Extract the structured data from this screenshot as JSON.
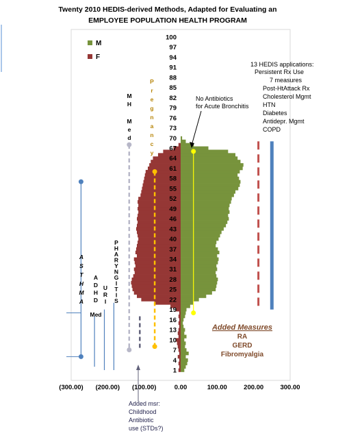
{
  "chart_data": {
    "type": "bar",
    "orientation": "horizontal-population-pyramid",
    "title_line1": "Twenty 2010 HEDIS-derived Methods, Adapted for Evaluating an",
    "title_line2": "EMPLOYEE POPULATION HEALTH PROGRAM",
    "x_ticks": [
      "(300.00)",
      "(200.00)",
      "(100.00)",
      "0.00",
      "100.00",
      "200.00",
      "300.00"
    ],
    "xlim": [
      -300,
      300
    ],
    "ylim": [
      1,
      100
    ],
    "age_labels": [
      "100",
      "97",
      "94",
      "91",
      "88",
      "85",
      "82",
      "79",
      "76",
      "73",
      "70",
      "67",
      "64",
      "61",
      "58",
      "55",
      "52",
      "49",
      "46",
      "43",
      "40",
      "37",
      "34",
      "31",
      "28",
      "25",
      "22",
      "19",
      "16",
      "13",
      "10",
      "7",
      "4",
      "1"
    ],
    "legend": [
      {
        "key": "M",
        "label": "M",
        "color": "#77933c"
      },
      {
        "key": "F",
        "label": "F",
        "color": "#953735"
      }
    ],
    "series": [
      {
        "name": "M",
        "color": "#77933c",
        "values": [
          [
            1,
            10
          ],
          [
            2,
            14
          ],
          [
            3,
            18
          ],
          [
            4,
            20
          ],
          [
            5,
            14
          ],
          [
            6,
            22
          ],
          [
            7,
            16
          ],
          [
            8,
            12
          ],
          [
            9,
            14
          ],
          [
            10,
            10
          ],
          [
            11,
            16
          ],
          [
            12,
            10
          ],
          [
            13,
            12
          ],
          [
            14,
            8
          ],
          [
            15,
            6
          ],
          [
            16,
            8
          ],
          [
            17,
            12
          ],
          [
            18,
            14
          ],
          [
            19,
            16
          ],
          [
            20,
            26
          ],
          [
            21,
            34
          ],
          [
            22,
            50
          ],
          [
            23,
            70
          ],
          [
            24,
            86
          ],
          [
            25,
            96
          ],
          [
            26,
            98
          ],
          [
            27,
            100
          ],
          [
            28,
            102
          ],
          [
            29,
            98
          ],
          [
            30,
            96
          ],
          [
            31,
            100
          ],
          [
            32,
            98
          ],
          [
            33,
            102
          ],
          [
            34,
            104
          ],
          [
            35,
            100
          ],
          [
            36,
            106
          ],
          [
            37,
            102
          ],
          [
            38,
            96
          ],
          [
            39,
            98
          ],
          [
            40,
            104
          ],
          [
            41,
            108
          ],
          [
            42,
            112
          ],
          [
            43,
            118
          ],
          [
            44,
            124
          ],
          [
            45,
            128
          ],
          [
            46,
            132
          ],
          [
            47,
            130
          ],
          [
            48,
            134
          ],
          [
            49,
            132
          ],
          [
            50,
            134
          ],
          [
            51,
            138
          ],
          [
            52,
            140
          ],
          [
            53,
            146
          ],
          [
            54,
            150
          ],
          [
            55,
            158
          ],
          [
            56,
            162
          ],
          [
            57,
            164
          ],
          [
            58,
            160
          ],
          [
            59,
            156
          ],
          [
            60,
            162
          ],
          [
            61,
            170
          ],
          [
            62,
            172
          ],
          [
            63,
            164
          ],
          [
            64,
            156
          ],
          [
            65,
            150
          ],
          [
            66,
            130
          ],
          [
            67,
            76
          ],
          [
            68,
            36
          ],
          [
            69,
            14
          ],
          [
            70,
            4
          ]
        ]
      },
      {
        "name": "F",
        "color": "#953735",
        "values": [
          [
            1,
            6
          ],
          [
            2,
            4
          ],
          [
            3,
            6
          ],
          [
            4,
            4
          ],
          [
            5,
            8
          ],
          [
            6,
            4
          ],
          [
            7,
            6
          ],
          [
            8,
            8
          ],
          [
            9,
            10
          ],
          [
            10,
            14
          ],
          [
            11,
            6
          ],
          [
            12,
            8
          ],
          [
            13,
            6
          ],
          [
            14,
            4
          ],
          [
            15,
            6
          ],
          [
            16,
            4
          ],
          [
            17,
            6
          ],
          [
            18,
            4
          ],
          [
            19,
            14
          ],
          [
            20,
            28
          ],
          [
            21,
            72
          ],
          [
            22,
            108
          ],
          [
            23,
            120
          ],
          [
            24,
            128
          ],
          [
            25,
            132
          ],
          [
            26,
            134
          ],
          [
            27,
            136
          ],
          [
            28,
            134
          ],
          [
            29,
            130
          ],
          [
            30,
            126
          ],
          [
            31,
            128
          ],
          [
            32,
            124
          ],
          [
            33,
            126
          ],
          [
            34,
            128
          ],
          [
            35,
            120
          ],
          [
            36,
            124
          ],
          [
            37,
            122
          ],
          [
            38,
            120
          ],
          [
            39,
            118
          ],
          [
            40,
            116
          ],
          [
            41,
            118
          ],
          [
            42,
            120
          ],
          [
            43,
            122
          ],
          [
            44,
            120
          ],
          [
            45,
            118
          ],
          [
            46,
            120
          ],
          [
            47,
            118
          ],
          [
            48,
            116
          ],
          [
            49,
            118
          ],
          [
            50,
            116
          ],
          [
            51,
            118
          ],
          [
            52,
            116
          ],
          [
            53,
            110
          ],
          [
            54,
            108
          ],
          [
            55,
            106
          ],
          [
            56,
            104
          ],
          [
            57,
            102
          ],
          [
            58,
            100
          ],
          [
            59,
            98
          ],
          [
            60,
            96
          ],
          [
            61,
            90
          ],
          [
            62,
            86
          ],
          [
            63,
            82
          ],
          [
            64,
            76
          ],
          [
            65,
            62
          ],
          [
            66,
            48
          ],
          [
            67,
            20
          ],
          [
            68,
            6
          ]
        ]
      }
    ],
    "measures": [
      {
        "label": "ASTHMA",
        "x": -273,
        "age_range": [
          5,
          57
        ],
        "color": "#4f81bd",
        "end_dots": true
      },
      {
        "label": "ADHD Med",
        "x": -236,
        "age_range": [
          2,
          17
        ],
        "color": "#4f81bd"
      },
      {
        "label": "URI",
        "x": -209,
        "age_range": [
          1,
          19
        ],
        "color": "#4f81bd"
      },
      {
        "label": "PHARYNGITIS",
        "x": -183,
        "age_range": [
          1,
          21
        ],
        "color": "#4f81bd"
      },
      {
        "label": "MH Med",
        "x": -141,
        "age_range": [
          7,
          68
        ],
        "color": "#b7b7c8",
        "dashed": true,
        "end_dots": true
      },
      {
        "label": "Pregnancy",
        "x": -71,
        "age_range": [
          8,
          60
        ],
        "color": "#ffc000",
        "dashed": true,
        "end_dots": true
      },
      {
        "label": "No Antibiotics for Acute Bronchitis",
        "x": 35,
        "age_range": [
          18,
          66
        ],
        "color": "#ffff00",
        "end_dots": true
      },
      {
        "label": "Added msr: Childhood Antibiotic use (STDs?)",
        "x": -112,
        "age_range": [
          7,
          17
        ],
        "color": "#60607a",
        "dashed": true
      },
      {
        "label": "Added Measures",
        "x": 213,
        "age_range": [
          20,
          69
        ],
        "color": "#c0504d",
        "dashed": true
      },
      {
        "label": "13 HEDIS applications",
        "x": 250,
        "age_range": [
          19,
          69
        ],
        "color": "#4f81bd"
      }
    ],
    "asthma_ticks": [
      5,
      18
    ],
    "annotations": {
      "mh_med_line1": "M H",
      "mh_med_line2": "M e d",
      "pregnancy": "Pregnancy",
      "asthma": "ASTHMA",
      "adhd": "ADHD",
      "adhd_med": "Med",
      "uri": "URI",
      "pharyngitis": "PHARYNGITIS",
      "bronchitis_line1": "No Antibiotics",
      "bronchitis_line2": "for Acute Bronchitis",
      "added_msr_line1": "Added msr:",
      "added_msr_line2": "Childhood",
      "added_msr_line3": "Antibiotic",
      "added_msr_line4": "use (STDs?)",
      "added_measures_title": "Added Measures",
      "added_measures_items": [
        "RA",
        "GERD",
        "Fibromyalgia"
      ],
      "hedis_title": "13 HEDIS applications:",
      "hedis_items": [
        "Persistent Rx Use",
        "7 measures",
        "Post-HtAttack Rx",
        "Cholesterol Mgmt",
        "HTN",
        "Diabetes",
        "Antidepr. Mgmt",
        "COPD"
      ]
    },
    "colors": {
      "male": "#77933c",
      "female": "#953735",
      "blue": "#4f81bd",
      "axis_frame": "#d9d9d9",
      "added_measures_text": "#7f4a2a"
    }
  }
}
